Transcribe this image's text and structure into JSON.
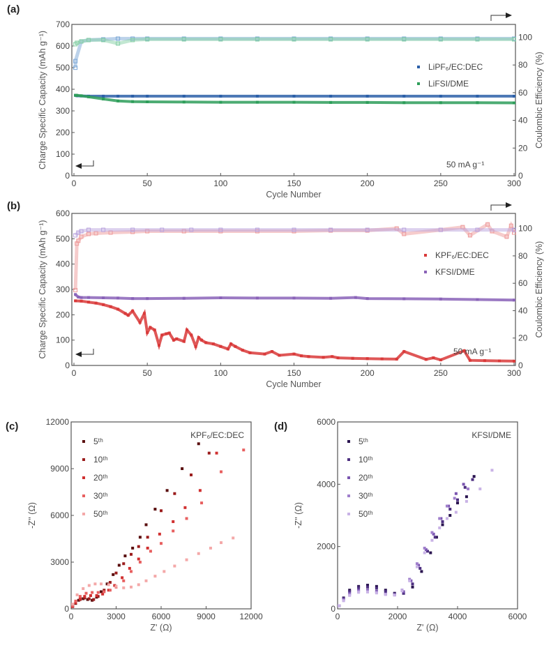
{
  "chart_data": [
    {
      "panel": "(a)",
      "type": "scatter",
      "xlabel": "Cycle Number",
      "ylabel": "Charge Specific Capacity (mAh g⁻¹)",
      "y2label": "Coulombic Efficiency (%)",
      "xlim": [
        -1.5,
        301
      ],
      "ylim": [
        0,
        700
      ],
      "y2lim": [
        0,
        109.3
      ],
      "xticks": [
        0,
        50,
        100,
        150,
        200,
        250,
        300
      ],
      "yticks": [
        0,
        100,
        200,
        300,
        400,
        500,
        600,
        700
      ],
      "y2ticks": [
        0,
        20,
        40,
        60,
        80,
        100
      ],
      "annotation": "50 mA g⁻¹",
      "legend_position": "right",
      "series": [
        {
          "name": "LiPF₆/EC:DEC",
          "axis": "left",
          "color": "#2b5fa8",
          "filled": true,
          "x": [
            1,
            2,
            5,
            10,
            20,
            30,
            40,
            50,
            75,
            100,
            125,
            150,
            175,
            200,
            225,
            250,
            275,
            300
          ],
          "y": [
            372,
            370,
            369,
            368,
            368,
            368,
            368,
            368,
            368,
            368,
            368,
            368,
            368,
            368,
            368,
            368,
            368,
            368
          ]
        },
        {
          "name": "LiFSI/DME",
          "axis": "left",
          "color": "#2e9e5a",
          "filled": true,
          "x": [
            1,
            2,
            5,
            10,
            20,
            30,
            40,
            50,
            75,
            100,
            125,
            150,
            175,
            200,
            225,
            250,
            275,
            300
          ],
          "y": [
            372,
            372,
            370,
            365,
            355,
            346,
            343,
            342,
            341,
            340,
            340,
            340,
            339,
            339,
            338,
            338,
            338,
            337
          ]
        },
        {
          "axis": "right",
          "color": "#7aa6d6",
          "filled": false,
          "x": [
            1,
            1,
            5,
            10,
            20,
            30,
            40,
            50,
            75,
            100,
            125,
            150,
            175,
            200,
            225,
            250,
            275,
            300
          ],
          "y": [
            78,
            82.8,
            97,
            98,
            98.5,
            99,
            99,
            99,
            99,
            99,
            99,
            99,
            99,
            99,
            99,
            99,
            99,
            99
          ]
        },
        {
          "axis": "right",
          "color": "#86cfa6",
          "filled": false,
          "x": [
            1,
            2,
            5,
            10,
            20,
            30,
            40,
            50,
            75,
            100,
            125,
            150,
            175,
            200,
            225,
            250,
            275,
            300
          ],
          "y": [
            95,
            96,
            97,
            98,
            98,
            95.5,
            98,
            98.5,
            98.5,
            98.5,
            98.5,
            98.5,
            98.5,
            98.5,
            98.5,
            98.5,
            98.5,
            98.5
          ]
        }
      ]
    },
    {
      "panel": "(b)",
      "type": "scatter",
      "xlabel": "Cycle Number",
      "ylabel": "Charge Specific Capacity (mAh g⁻¹)",
      "y2label": "Coulombic Efficiency (%)",
      "xlim": [
        -1.5,
        301
      ],
      "ylim": [
        0,
        600
      ],
      "y2lim": [
        0,
        111
      ],
      "xticks": [
        0,
        50,
        100,
        150,
        200,
        250,
        300
      ],
      "yticks": [
        0,
        100,
        200,
        300,
        400,
        500,
        600
      ],
      "y2ticks": [
        0,
        20,
        40,
        60,
        80,
        100
      ],
      "annotation": "50 mA g⁻¹",
      "legend_position": "right",
      "series": [
        {
          "name": "KPF₆/EC:DEC",
          "axis": "left",
          "color": "#d93a3a",
          "filled": true,
          "x": [
            1,
            5,
            10,
            15,
            20,
            25,
            30,
            35,
            37,
            40,
            45,
            48,
            50,
            52,
            55,
            58,
            60,
            63,
            65,
            68,
            70,
            75,
            77,
            80,
            83,
            85,
            87,
            90,
            95,
            100,
            105,
            107,
            110,
            115,
            120,
            130,
            135,
            140,
            150,
            155,
            160,
            170,
            176,
            180,
            190,
            200,
            210,
            220,
            225,
            240,
            245,
            250,
            266,
            270,
            280,
            290,
            300
          ],
          "y": [
            255,
            254,
            250,
            246,
            240,
            232,
            222,
            205,
            198,
            215,
            170,
            205,
            130,
            150,
            140,
            80,
            120,
            125,
            128,
            100,
            105,
            95,
            140,
            120,
            75,
            110,
            100,
            90,
            85,
            75,
            65,
            85,
            75,
            60,
            50,
            45,
            55,
            40,
            45,
            38,
            35,
            32,
            35,
            30,
            28,
            27,
            26,
            25,
            55,
            24,
            30,
            22,
            58,
            20,
            19,
            18,
            17
          ]
        },
        {
          "name": "KFSI/DME",
          "axis": "left",
          "color": "#8a63b8",
          "filled": true,
          "x": [
            1,
            3,
            5,
            10,
            20,
            30,
            40,
            50,
            75,
            100,
            125,
            150,
            175,
            192,
            200,
            225,
            250,
            275,
            300
          ],
          "y": [
            280,
            270,
            268,
            268,
            267,
            266,
            264,
            264,
            265,
            267,
            266,
            266,
            265,
            268,
            264,
            263,
            262,
            260,
            258
          ]
        },
        {
          "axis": "right",
          "color": "#ee9a9a",
          "filled": false,
          "x": [
            1,
            2,
            3,
            5,
            10,
            15,
            25,
            40,
            50,
            75,
            100,
            125,
            150,
            175,
            200,
            220,
            225,
            250,
            265,
            270,
            282,
            285,
            295,
            298,
            300
          ],
          "y": [
            55,
            89,
            91,
            94,
            96,
            96.5,
            97,
            97.5,
            98,
            98,
            98,
            98,
            98,
            98.5,
            98.5,
            100,
            96,
            99,
            101,
            95,
            103,
            98,
            94,
            102,
            97
          ]
        },
        {
          "axis": "right",
          "color": "#b9a3de",
          "filled": false,
          "x": [
            1,
            3,
            5,
            10,
            20,
            40,
            60,
            80,
            100,
            125,
            150,
            175,
            200,
            225,
            250,
            275,
            300
          ],
          "y": [
            95,
            97,
            98,
            99,
            99,
            99,
            99,
            99,
            99,
            99,
            99,
            99,
            99,
            99,
            99,
            99,
            99
          ]
        }
      ]
    },
    {
      "panel": "(c)",
      "type": "scatter",
      "xlabel": "Z' (Ω)",
      "ylabel": "-Z'' (Ω)",
      "xlim": [
        0,
        12000
      ],
      "ylim": [
        0,
        12000
      ],
      "xticks": [
        0,
        3000,
        6000,
        9000,
        12000
      ],
      "yticks": [
        0,
        3000,
        6000,
        9000,
        12000
      ],
      "annotation": "KPF₆/EC:DEC",
      "legend_position": "top-left",
      "series": [
        {
          "name": "5ᵗʰ",
          "color": "#5a0f0f",
          "filled": true,
          "x": [
            100,
            300,
            500,
            800,
            1100,
            1400,
            1700,
            2000,
            2400,
            2800,
            3200,
            3600,
            4100,
            4600,
            5000,
            5600,
            6400,
            7400,
            8500
          ],
          "y": [
            150,
            350,
            550,
            650,
            600,
            550,
            750,
            1100,
            1600,
            2200,
            2800,
            3400,
            3900,
            4600,
            5400,
            6400,
            7600,
            9000,
            10600
          ]
        },
        {
          "name": "10ᵗʰ",
          "color": "#9b1d1d",
          "filled": true,
          "x": [
            100,
            300,
            600,
            900,
            1200,
            1500,
            1800,
            2200,
            2600,
            3000,
            3500,
            4000,
            4500,
            5100,
            6000,
            6900,
            8000,
            9200
          ],
          "y": [
            150,
            380,
            600,
            700,
            650,
            600,
            800,
            1200,
            1700,
            2300,
            2900,
            3500,
            4000,
            4600,
            6300,
            7400,
            8600,
            10000
          ]
        },
        {
          "name": "20ᵗʰ",
          "color": "#d03030",
          "filled": true,
          "x": [
            100,
            300,
            600,
            900,
            1300,
            1700,
            2100,
            2500,
            2900,
            3400,
            3900,
            4500,
            5100,
            5900,
            6800,
            7600,
            8600,
            9700
          ],
          "y": [
            150,
            400,
            650,
            800,
            850,
            850,
            950,
            1200,
            1500,
            2000,
            2600,
            3200,
            3900,
            4800,
            5600,
            6500,
            7600,
            10000
          ]
        },
        {
          "name": "30ᵗʰ",
          "color": "#e86060",
          "filled": true,
          "x": [
            100,
            300,
            600,
            1000,
            1400,
            1800,
            2200,
            2600,
            3000,
            3500,
            4000,
            4600,
            5300,
            6000,
            6800,
            7700,
            8700,
            10000,
            11500
          ],
          "y": [
            200,
            500,
            800,
            1000,
            1050,
            1050,
            1100,
            1200,
            1400,
            1800,
            2400,
            3000,
            3700,
            4200,
            5000,
            5800,
            6800,
            8800,
            10200
          ]
        },
        {
          "name": "50ᵗʰ",
          "color": "#f4a8a8",
          "filled": true,
          "x": [
            100,
            400,
            800,
            1200,
            1600,
            2000,
            2500,
            3000,
            3500,
            4000,
            4500,
            5000,
            5600,
            6200,
            6900,
            7700,
            8500,
            9300,
            10000,
            10800
          ],
          "y": [
            300,
            900,
            1300,
            1500,
            1600,
            1600,
            1550,
            1450,
            1350,
            1400,
            1550,
            1800,
            2100,
            2400,
            2750,
            3150,
            3550,
            3900,
            4250,
            4550
          ]
        }
      ]
    },
    {
      "panel": "(d)",
      "type": "scatter",
      "xlabel": "Z' (Ω)",
      "ylabel": "-Z'' (Ω)",
      "xlim": [
        0,
        6000
      ],
      "ylim": [
        0,
        6000
      ],
      "xticks": [
        0,
        2000,
        4000,
        6000
      ],
      "yticks": [
        0,
        2000,
        4000,
        6000
      ],
      "annotation": "KFSI/DME",
      "legend_position": "top-left",
      "series": [
        {
          "name": "5ᵗʰ",
          "color": "#2a1450",
          "filled": true,
          "x": [
            50,
            200,
            400,
            700,
            1000,
            1300,
            1600,
            1900,
            2200,
            2500,
            2800,
            3100,
            3300,
            3500,
            3750,
            4000,
            4300,
            4550
          ],
          "y": [
            100,
            350,
            600,
            720,
            760,
            720,
            600,
            500,
            500,
            700,
            1200,
            1800,
            2300,
            2700,
            3000,
            3400,
            3600,
            4250
          ]
        },
        {
          "name": "10ᵗʰ",
          "color": "#4d2f80",
          "filled": true,
          "x": [
            50,
            200,
            400,
            700,
            1000,
            1300,
            1600,
            1900,
            2200,
            2500,
            2750,
            3000,
            3250,
            3500,
            3750,
            4000,
            4250,
            4500
          ],
          "y": [
            100,
            330,
            560,
            680,
            700,
            660,
            560,
            480,
            500,
            800,
            1300,
            1850,
            2300,
            2800,
            3200,
            3500,
            3900,
            4150
          ]
        },
        {
          "name": "20ᵗʰ",
          "color": "#7a55b0",
          "filled": true,
          "x": [
            50,
            200,
            400,
            700,
            1000,
            1300,
            1600,
            1900,
            2200,
            2450,
            2700,
            2950,
            3200,
            3450,
            3700,
            3950,
            4200
          ],
          "y": [
            100,
            300,
            500,
            600,
            600,
            560,
            480,
            450,
            550,
            900,
            1400,
            1900,
            2400,
            2900,
            3300,
            3700,
            4000
          ]
        },
        {
          "name": "30ᵗʰ",
          "color": "#a07fcc",
          "filled": true,
          "x": [
            50,
            200,
            400,
            700,
            1000,
            1300,
            1600,
            1900,
            2150,
            2400,
            2650,
            2900,
            3150,
            3400,
            3650,
            3900,
            4350
          ],
          "y": [
            100,
            280,
            460,
            560,
            570,
            530,
            470,
            450,
            600,
            950,
            1450,
            1950,
            2450,
            2900,
            3300,
            3550,
            3850
          ]
        },
        {
          "name": "50ᵗʰ",
          "color": "#c9b3e6",
          "filled": true,
          "x": [
            50,
            200,
            400,
            700,
            1000,
            1300,
            1600,
            1900,
            2150,
            2400,
            2650,
            2900,
            3150,
            3400,
            3650,
            3950,
            4300,
            4750,
            5150
          ],
          "y": [
            100,
            260,
            430,
            530,
            540,
            510,
            460,
            440,
            580,
            900,
            1350,
            1800,
            2200,
            2600,
            2900,
            3100,
            3450,
            3850,
            4450
          ]
        }
      ]
    }
  ]
}
